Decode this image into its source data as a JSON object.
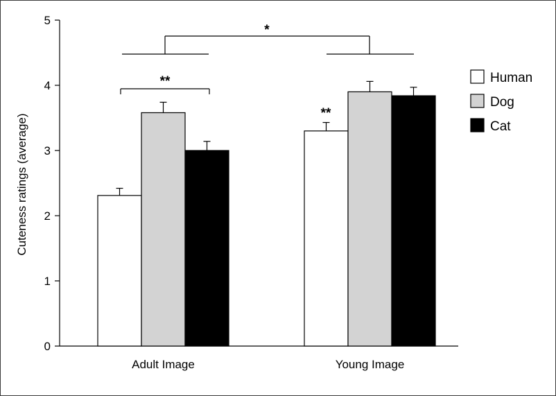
{
  "chart_data": {
    "type": "bar",
    "title": "",
    "xlabel": "",
    "ylabel": "Cuteness ratings (average)",
    "ylim": [
      0,
      5
    ],
    "yticks": [
      "0",
      "1",
      "2",
      "3",
      "4",
      "5"
    ],
    "categories": [
      "Adult Image",
      "Young Image"
    ],
    "series": [
      {
        "name": "Human",
        "values": [
          2.31,
          3.3
        ],
        "errors": [
          0.11,
          0.13
        ],
        "color": "#ffffff"
      },
      {
        "name": "Dog",
        "values": [
          3.58,
          3.9
        ],
        "errors": [
          0.16,
          0.16
        ],
        "color": "#d3d3d3"
      },
      {
        "name": "Cat",
        "values": [
          3.0,
          3.84
        ],
        "errors": [
          0.14,
          0.13
        ],
        "color": "#000000"
      }
    ],
    "legend": {
      "position": "right",
      "entries": [
        "Human",
        "Dog",
        "Cat"
      ]
    },
    "annotations": {
      "between_groups": "*",
      "adult_human_vs_others": "**",
      "young_human": "**"
    },
    "grid": false
  }
}
